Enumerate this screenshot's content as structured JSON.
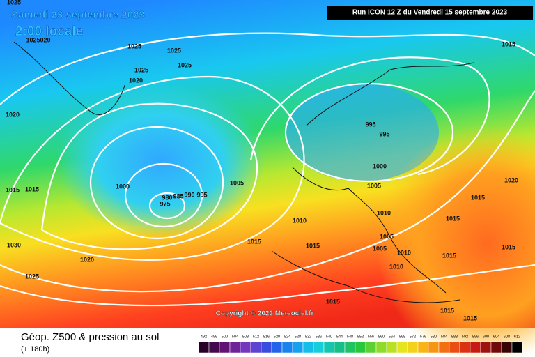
{
  "header": {
    "date": "Samedi 23 septembre 2023",
    "time": "2:00 locale",
    "run": "Run ICON 12 Z du Vendredi 15 septembre 2023"
  },
  "copyright": "Copyright © 2023 Meteociel.fr",
  "footer": {
    "title": "Géop. Z500 & pression au sol",
    "subtitle": "(+ 180h)"
  },
  "scale": {
    "values": [
      492,
      496,
      500,
      504,
      508,
      512,
      516,
      520,
      524,
      528,
      532,
      536,
      540,
      544,
      548,
      552,
      556,
      560,
      564,
      568,
      572,
      576,
      580,
      584,
      588,
      592,
      596,
      600,
      604,
      608,
      612
    ]
  },
  "isobars": [
    "1025",
    "1025020",
    "1025",
    "1025",
    "1025",
    "1025",
    "1020",
    "1020",
    "1015",
    "1015",
    "1000",
    "980",
    "985",
    "990",
    "995",
    "975",
    "1005",
    "1010",
    "1015",
    "1015",
    "1030",
    "1020",
    "1025",
    "995",
    "995",
    "1000",
    "1005",
    "1010",
    "1005",
    "1005",
    "1010",
    "1010",
    "1015",
    "1015",
    "1020",
    "1015",
    "1015",
    "1015",
    "1015",
    "1015",
    "1015"
  ]
}
